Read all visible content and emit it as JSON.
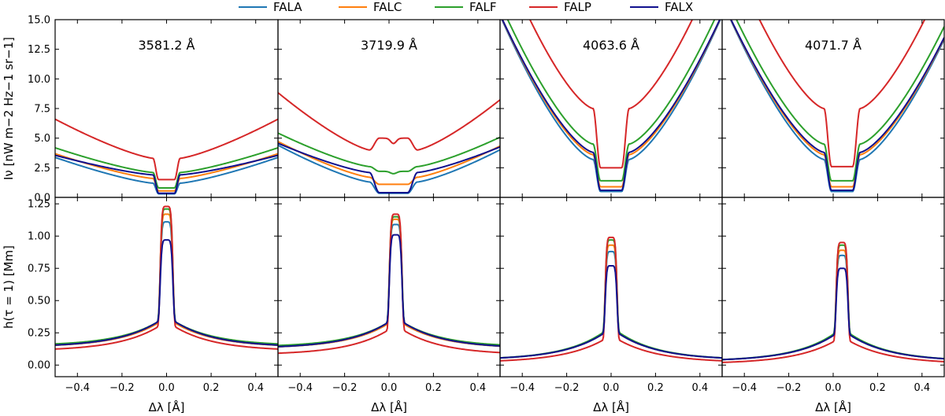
{
  "chart_data": {
    "type": "line",
    "legend": {
      "placement": "top-center",
      "entries": [
        {
          "name": "FALA",
          "color": "#1f77b4"
        },
        {
          "name": "FALC",
          "color": "#ff7f0e"
        },
        {
          "name": "FALF",
          "color": "#2ca02c"
        },
        {
          "name": "FALP",
          "color": "#d62728"
        },
        {
          "name": "FALX",
          "color": "#10108e"
        }
      ]
    },
    "x_axis": {
      "label": "Δλ [Å]",
      "range": [
        -0.5,
        0.5
      ],
      "ticks": [
        -0.4,
        -0.2,
        0.0,
        0.2,
        0.4
      ],
      "tick_labels": [
        "−0.4",
        "−0.2",
        "0.0",
        "0.2",
        "0.4"
      ]
    },
    "rows": [
      {
        "ylabel": "I_ν [nW m^−2 Hz^−1 sr^−1]",
        "ylim": [
          0,
          15
        ],
        "ticks": [
          0,
          2.5,
          5,
          7.5,
          10,
          12.5,
          15
        ],
        "tick_labels": [
          "0.0",
          "2.5",
          "5.0",
          "7.5",
          "10.0",
          "12.5",
          "15.0"
        ]
      },
      {
        "ylabel": "h(τ = 1) [Mm]",
        "ylim": [
          -0.09,
          1.3
        ],
        "ticks": [
          0,
          0.25,
          0.5,
          0.75,
          1.0,
          1.25
        ],
        "tick_labels": [
          "0.00",
          "0.25",
          "0.50",
          "0.75",
          "1.00",
          "1.25"
        ]
      }
    ],
    "panels": [
      {
        "title": "3581.2 Å",
        "intensity": {
          "center": 0.0,
          "half_width": 0.045,
          "wing_power": 1.3,
          "series": {
            "FALA": {
              "core": 0.3,
              "edge": 1.2,
              "wing": 3.7
            },
            "FALC": {
              "core": 0.55,
              "edge": 1.6,
              "wing": 4.0
            },
            "FALF": {
              "core": 0.8,
              "edge": 2.1,
              "wing": 4.5
            },
            "FALP": {
              "core": 1.5,
              "edge": 3.3,
              "wing": 7.1
            },
            "FALX": {
              "core": 0.35,
              "edge": 1.9,
              "wing": 3.8
            }
          }
        },
        "height": {
          "center": 0.0,
          "width": 0.03,
          "base_width": 0.07,
          "series": {
            "FALA": {
              "peak": 1.11,
              "shoulder": 0.33,
              "wing": 0.14
            },
            "FALC": {
              "peak": 1.17,
              "shoulder": 0.33,
              "wing": 0.14
            },
            "FALF": {
              "peak": 1.21,
              "shoulder": 0.34,
              "wing": 0.15
            },
            "FALP": {
              "peak": 1.23,
              "shoulder": 0.3,
              "wing": 0.11
            },
            "FALX": {
              "peak": 0.97,
              "shoulder": 0.34,
              "wing": 0.14
            }
          }
        }
      },
      {
        "title": "3719.9 Å",
        "intensity": {
          "center": 0.02,
          "half_width": 0.08,
          "wing_power": 1.3,
          "series": {
            "FALA": {
              "core": 0.35,
              "edge": 1.3,
              "wing": 4.7
            },
            "FALC": {
              "core": 1.1,
              "edge": 1.7,
              "wing": 5.0
            },
            "FALF": {
              "core": 2.2,
              "edge": 2.6,
              "wing": 5.7
            },
            "FALP": {
              "core": 5.0,
              "edge": 4.0,
              "wing": 9.3
            },
            "FALX": {
              "core": 0.4,
              "edge": 2.1,
              "wing": 4.8
            }
          }
        },
        "height": {
          "center": 0.03,
          "width": 0.03,
          "base_width": 0.07,
          "series": {
            "FALA": {
              "peak": 1.09,
              "shoulder": 0.32,
              "wing": 0.13
            },
            "FALC": {
              "peak": 1.13,
              "shoulder": 0.32,
              "wing": 0.13
            },
            "FALF": {
              "peak": 1.15,
              "shoulder": 0.33,
              "wing": 0.14
            },
            "FALP": {
              "peak": 1.17,
              "shoulder": 0.27,
              "wing": 0.08
            },
            "FALX": {
              "peak": 1.01,
              "shoulder": 0.33,
              "wing": 0.13
            }
          }
        }
      },
      {
        "title": "4063.6 Å",
        "intensity": {
          "center": 0.0,
          "half_width": 0.06,
          "wing_power": 1.45,
          "series": {
            "FALA": {
              "core": 0.5,
              "edge": 3.2,
              "wing": 17.5
            },
            "FALC": {
              "core": 0.9,
              "edge": 3.6,
              "wing": 17.5
            },
            "FALF": {
              "core": 1.4,
              "edge": 4.5,
              "wing": 18.5
            },
            "FALP": {
              "core": 2.5,
              "edge": 7.5,
              "wing": 23.0
            },
            "FALX": {
              "core": 0.6,
              "edge": 3.8,
              "wing": 17.5
            }
          }
        },
        "height": {
          "center": 0.0,
          "width": 0.028,
          "base_width": 0.06,
          "series": {
            "FALA": {
              "peak": 0.88,
              "shoulder": 0.25,
              "wing": 0.04
            },
            "FALC": {
              "peak": 0.93,
              "shoulder": 0.25,
              "wing": 0.04
            },
            "FALF": {
              "peak": 0.97,
              "shoulder": 0.26,
              "wing": 0.04
            },
            "FALP": {
              "peak": 0.99,
              "shoulder": 0.2,
              "wing": 0.02
            },
            "FALX": {
              "peak": 0.77,
              "shoulder": 0.25,
              "wing": 0.04
            }
          }
        }
      },
      {
        "title": "4071.7 Å",
        "intensity": {
          "center": 0.04,
          "half_width": 0.06,
          "wing_power": 1.45,
          "series": {
            "FALA": {
              "core": 0.5,
              "edge": 3.2,
              "wing": 17.0
            },
            "FALC": {
              "core": 0.9,
              "edge": 3.6,
              "wing": 17.0
            },
            "FALF": {
              "core": 1.4,
              "edge": 4.5,
              "wing": 18.0
            },
            "FALP": {
              "core": 2.6,
              "edge": 7.5,
              "wing": 22.5
            },
            "FALX": {
              "core": 0.6,
              "edge": 3.8,
              "wing": 17.0
            }
          }
        },
        "height": {
          "center": 0.04,
          "width": 0.028,
          "base_width": 0.06,
          "series": {
            "FALA": {
              "peak": 0.85,
              "shoulder": 0.24,
              "wing": 0.03
            },
            "FALC": {
              "peak": 0.89,
              "shoulder": 0.24,
              "wing": 0.03
            },
            "FALF": {
              "peak": 0.93,
              "shoulder": 0.25,
              "wing": 0.03
            },
            "FALP": {
              "peak": 0.95,
              "shoulder": 0.19,
              "wing": 0.01
            },
            "FALX": {
              "peak": 0.75,
              "shoulder": 0.24,
              "wing": 0.03
            }
          }
        }
      }
    ]
  }
}
